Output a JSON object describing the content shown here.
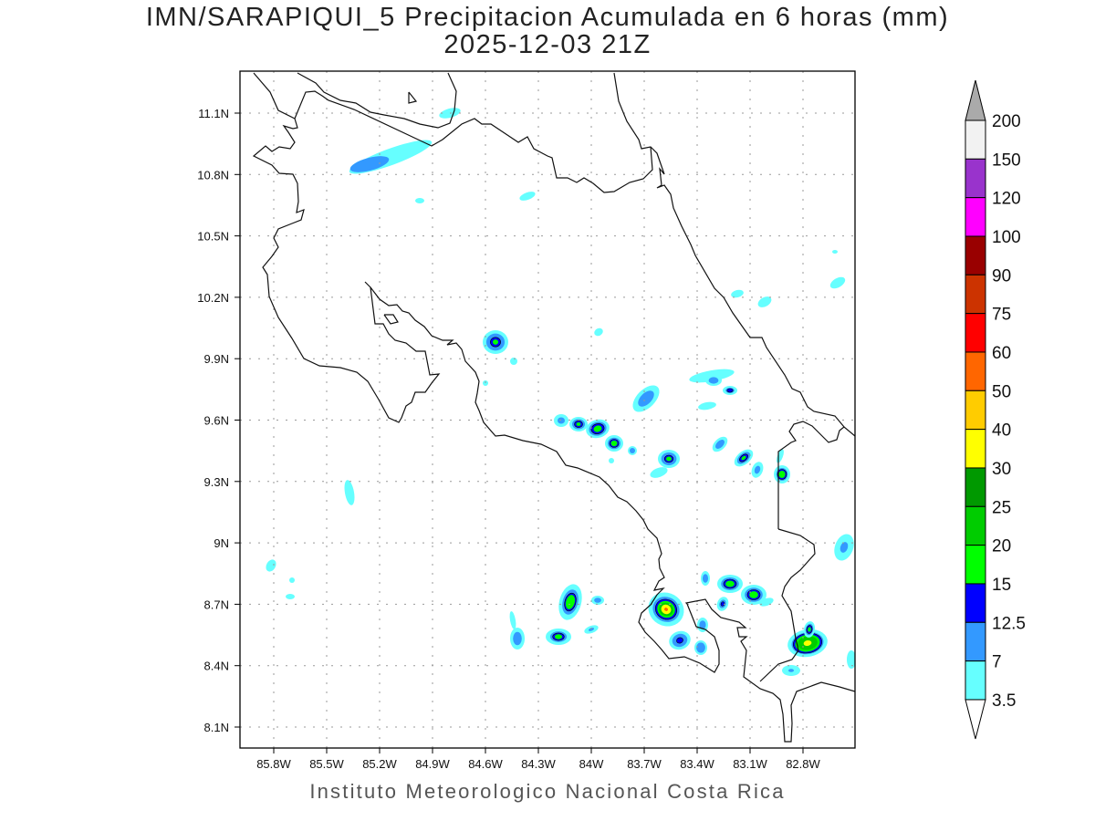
{
  "title": {
    "line1": "IMN/SARAPIQUI_5 Precipitacion Acumulada en 6 horas (mm)",
    "line2": "2025-12-03 21Z"
  },
  "footer": "Instituto Meteorologico Nacional Costa Rica",
  "map": {
    "region": "Costa Rica",
    "lat_range": [
      8.0,
      11.3
    ],
    "lon_range": [
      -86.0,
      -82.5
    ],
    "grid": "dotted",
    "lat_labels": [
      "11.1N",
      "10.8N",
      "10.5N",
      "10.2N",
      "9.9N",
      "9.6N",
      "9.3N",
      "9N",
      "8.7N",
      "8.4N",
      "8.1N"
    ],
    "lon_labels": [
      "85.8W",
      "85.5W",
      "85.2W",
      "84.9W",
      "84.6W",
      "84.3W",
      "84W",
      "83.7W",
      "83.4W",
      "83.1W",
      "82.8W"
    ]
  },
  "colorbar": {
    "labels": [
      "200",
      "150",
      "120",
      "100",
      "90",
      "75",
      "60",
      "50",
      "40",
      "30",
      "25",
      "20",
      "15",
      "12.5",
      "7",
      "3.5"
    ],
    "colors_top_to_bottom": [
      "#aaaaaa",
      "#f2f2f2",
      "#9933cc",
      "#ff00ff",
      "#990000",
      "#cc3300",
      "#ff0000",
      "#ff6600",
      "#ffcc00",
      "#ffff00",
      "#009900",
      "#00cc00",
      "#00ff00",
      "#0000ff",
      "#3399ff",
      "#66ffff",
      "#ffffff"
    ]
  }
}
